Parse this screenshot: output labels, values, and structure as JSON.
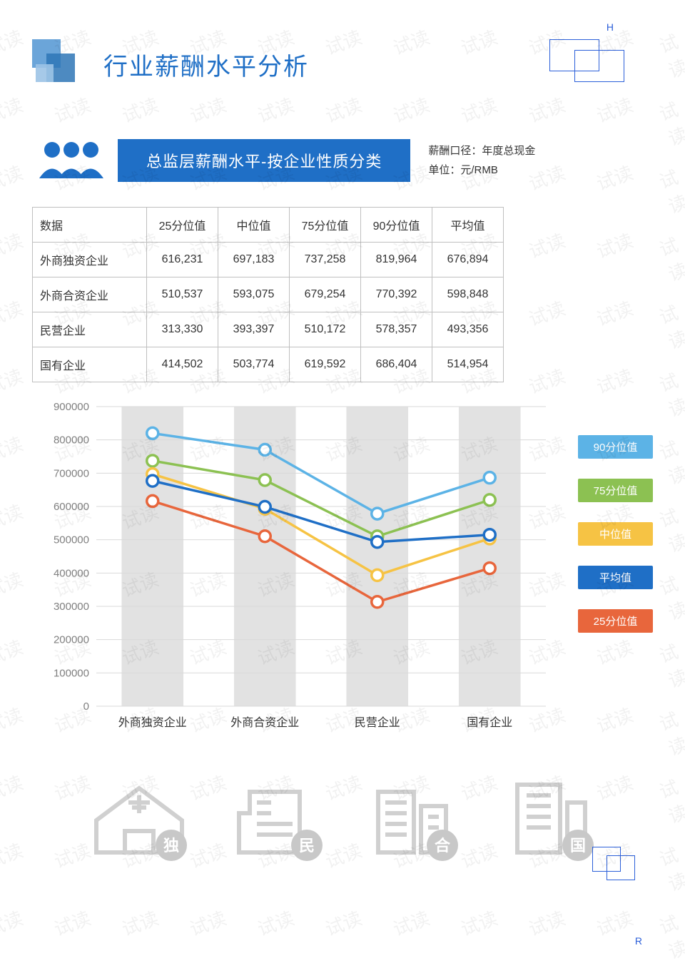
{
  "corner_h": "H",
  "corner_r": "R",
  "watermark_text": "试读",
  "page_title": "行业薪酬水平分析",
  "subtitle": "总监层薪酬水平-按企业性质分类",
  "meta_line1": "薪酬口径：年度总现金",
  "meta_line2": "单位：元/RMB",
  "table": {
    "columns": [
      "数据",
      "25分位值",
      "中位值",
      "75分位值",
      "90分位值",
      "平均值"
    ],
    "rows": [
      [
        "外商独资企业",
        "616,231",
        "697,183",
        "737,258",
        "819,964",
        "676,894"
      ],
      [
        "外商合资企业",
        "510,537",
        "593,075",
        "679,254",
        "770,392",
        "598,848"
      ],
      [
        "民营企业",
        "313,330",
        "393,397",
        "510,172",
        "578,357",
        "493,356"
      ],
      [
        "国有企业",
        "414,502",
        "503,774",
        "619,592",
        "686,404",
        "514,954"
      ]
    ]
  },
  "chart": {
    "type": "line",
    "background_color": "#ffffff",
    "band_color": "#e2e2e2",
    "categories": [
      "外商独资企业",
      "外商合资企业",
      "民营企业",
      "国有企业"
    ],
    "ylim": [
      0,
      900000
    ],
    "ytick_step": 100000,
    "yticks": [
      "0",
      "100000",
      "200000",
      "300000",
      "400000",
      "500000",
      "600000",
      "700000",
      "800000",
      "900000"
    ],
    "axis_color": "#7f7f7f",
    "axis_fontsize": 15,
    "line_width": 3.5,
    "marker_radius": 8,
    "marker_stroke": 3.5,
    "series": [
      {
        "name": "90分位值",
        "color": "#5cb3e6",
        "values": [
          819964,
          770392,
          578357,
          686404
        ]
      },
      {
        "name": "75分位值",
        "color": "#8cc152",
        "values": [
          737258,
          679254,
          510172,
          619592
        ]
      },
      {
        "name": "中位值",
        "color": "#f6c344",
        "values": [
          697183,
          593075,
          393397,
          503774
        ]
      },
      {
        "name": "平均值",
        "color": "#1f6fc6",
        "values": [
          676894,
          598848,
          493356,
          514954
        ]
      },
      {
        "name": "25分位值",
        "color": "#e8663c",
        "values": [
          616231,
          510537,
          313330,
          414502
        ]
      }
    ]
  },
  "bottom_badges": [
    "独",
    "民",
    "合",
    "国"
  ]
}
